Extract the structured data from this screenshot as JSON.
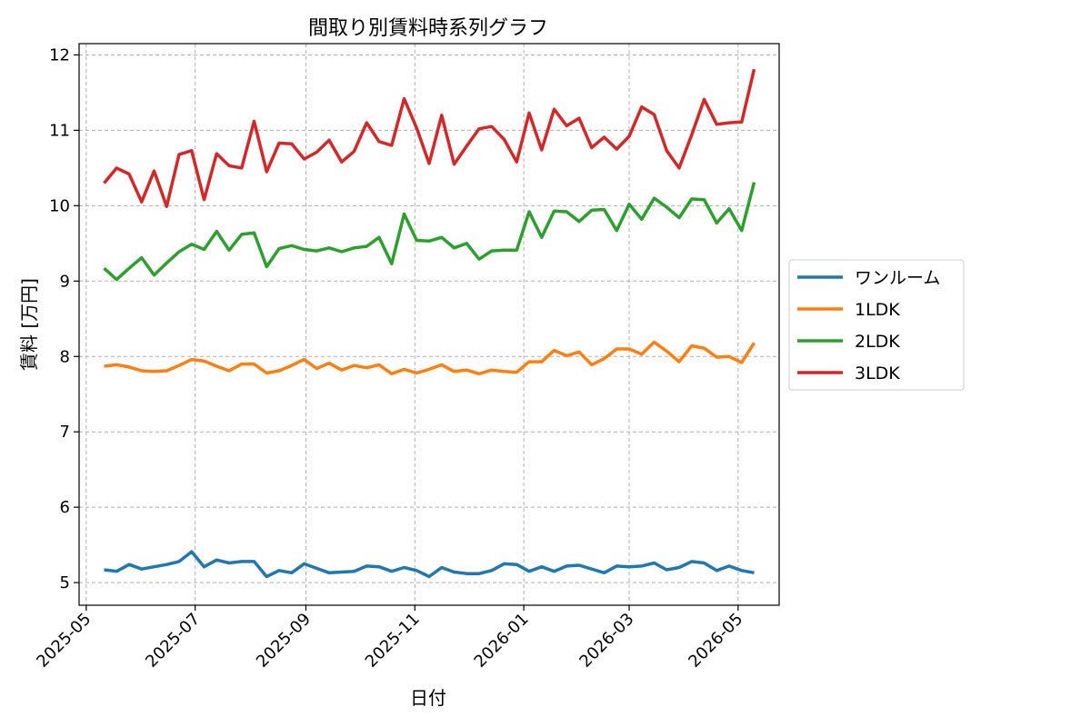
{
  "chart_data": {
    "type": "line",
    "title": "間取り別賃料時系列グラフ",
    "xlabel": "日付",
    "ylabel": "賃料 [万円]",
    "grid": true,
    "legend_position": "right-outside",
    "ylim": [
      4.7,
      12.15
    ],
    "xlim": [
      "2025-04-27",
      "2026-05-24"
    ],
    "yticks": [
      5,
      6,
      7,
      8,
      9,
      10,
      11,
      12
    ],
    "xticks": [
      "2025-05-01",
      "2025-07-01",
      "2025-09-01",
      "2025-11-01",
      "2026-01-01",
      "2026-03-01",
      "2026-05-01"
    ],
    "xtick_labels": [
      "2025-05",
      "2025-07",
      "2025-09",
      "2025-11",
      "2026-01",
      "2026-03",
      "2026-05"
    ],
    "x": [
      "2025-05-11",
      "2025-05-18",
      "2025-05-25",
      "2025-06-01",
      "2025-06-08",
      "2025-06-15",
      "2025-06-22",
      "2025-06-29",
      "2025-07-06",
      "2025-07-13",
      "2025-07-20",
      "2025-07-27",
      "2025-08-03",
      "2025-08-10",
      "2025-08-17",
      "2025-08-24",
      "2025-08-31",
      "2025-09-07",
      "2025-09-14",
      "2025-09-21",
      "2025-09-28",
      "2025-10-05",
      "2025-10-12",
      "2025-10-19",
      "2025-10-26",
      "2025-11-02",
      "2025-11-09",
      "2025-11-16",
      "2025-11-23",
      "2025-11-30",
      "2025-12-07",
      "2025-12-14",
      "2025-12-21",
      "2025-12-28",
      "2026-01-04",
      "2026-01-11",
      "2026-01-18",
      "2026-01-25",
      "2026-02-01",
      "2026-02-08",
      "2026-02-15",
      "2026-02-22",
      "2026-03-01",
      "2026-03-08",
      "2026-03-15",
      "2026-03-22",
      "2026-03-29",
      "2026-04-05",
      "2026-04-12",
      "2026-04-19",
      "2026-04-26",
      "2026-05-03",
      "2026-05-10"
    ],
    "series": [
      {
        "name": "ワンルーム",
        "color": "#1f77b4",
        "values": [
          5.17,
          5.15,
          5.24,
          5.18,
          5.21,
          5.24,
          5.28,
          5.41,
          5.21,
          5.3,
          5.26,
          5.28,
          5.28,
          5.08,
          5.16,
          5.13,
          5.25,
          5.19,
          5.13,
          5.14,
          5.15,
          5.22,
          5.21,
          5.15,
          5.2,
          5.16,
          5.08,
          5.2,
          5.14,
          5.12,
          5.12,
          5.16,
          5.25,
          5.24,
          5.15,
          5.21,
          5.15,
          5.22,
          5.23,
          5.18,
          5.13,
          5.22,
          5.21,
          5.22,
          5.26,
          5.17,
          5.2,
          5.28,
          5.26,
          5.16,
          5.22,
          5.16,
          5.13
        ]
      },
      {
        "name": "1LDK",
        "color": "#ff7f0e",
        "values": [
          7.87,
          7.89,
          7.86,
          7.81,
          7.8,
          7.81,
          7.88,
          7.96,
          7.94,
          7.87,
          7.81,
          7.9,
          7.9,
          7.78,
          7.81,
          7.88,
          7.96,
          7.84,
          7.91,
          7.82,
          7.88,
          7.85,
          7.89,
          7.77,
          7.83,
          7.78,
          7.83,
          7.89,
          7.8,
          7.82,
          7.77,
          7.82,
          7.8,
          7.79,
          7.93,
          7.93,
          8.08,
          8.01,
          8.06,
          7.89,
          7.97,
          8.1,
          8.1,
          8.03,
          8.19,
          8.07,
          7.93,
          8.14,
          8.11,
          7.99,
          8.0,
          7.92,
          8.18
        ]
      },
      {
        "name": "2LDK",
        "color": "#2ca02c",
        "values": [
          9.17,
          9.02,
          9.17,
          9.31,
          9.08,
          9.24,
          9.39,
          9.49,
          9.42,
          9.66,
          9.41,
          9.62,
          9.64,
          9.19,
          9.43,
          9.47,
          9.42,
          9.4,
          9.44,
          9.39,
          9.44,
          9.46,
          9.58,
          9.23,
          9.89,
          9.54,
          9.53,
          9.58,
          9.44,
          9.5,
          9.29,
          9.4,
          9.41,
          9.41,
          9.92,
          9.58,
          9.93,
          9.92,
          9.79,
          9.94,
          9.95,
          9.67,
          10.02,
          9.82,
          10.1,
          9.98,
          9.84,
          10.09,
          10.08,
          9.77,
          9.96,
          9.67,
          10.31
        ]
      },
      {
        "name": "3LDK",
        "color": "#d62728",
        "values": [
          10.3,
          10.5,
          10.42,
          10.05,
          10.46,
          9.99,
          10.68,
          10.73,
          10.08,
          10.69,
          10.53,
          10.5,
          11.12,
          10.45,
          10.83,
          10.82,
          10.62,
          10.71,
          10.87,
          10.58,
          10.72,
          11.1,
          10.85,
          10.8,
          11.42,
          11.03,
          10.56,
          11.2,
          10.55,
          10.79,
          11.02,
          11.05,
          10.88,
          10.58,
          11.23,
          10.74,
          11.28,
          11.06,
          11.16,
          10.77,
          10.91,
          10.75,
          10.92,
          11.31,
          11.21,
          10.73,
          10.5,
          10.94,
          11.41,
          11.08,
          11.1,
          11.11,
          11.81
        ]
      }
    ]
  }
}
